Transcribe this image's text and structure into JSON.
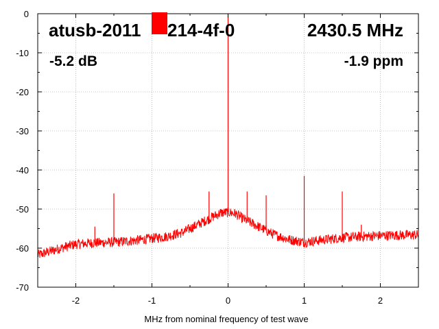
{
  "chart_data": {
    "type": "line",
    "title": "",
    "xlabel": "MHz from nominal frequency of test wave",
    "ylabel": "",
    "xlim": [
      -2.5,
      2.5
    ],
    "ylim": [
      -70,
      0
    ],
    "x_ticks": [
      -2,
      -1,
      0,
      1,
      2
    ],
    "y_ticks": [
      0,
      -10,
      -20,
      -30,
      -40,
      -50,
      -60,
      -70
    ],
    "grid": true,
    "series_color": "#ff0000",
    "series": [
      {
        "noise_floor": {
          "x": [
            -2.5,
            -2.2,
            -2.0,
            -1.8,
            -1.5,
            -1.2,
            -1.0,
            -0.8,
            -0.6,
            -0.4,
            -0.2,
            -0.1,
            0.0,
            0.1,
            0.2,
            0.4,
            0.6,
            0.8,
            1.0,
            1.2,
            1.5,
            1.8,
            2.0,
            2.2,
            2.5
          ],
          "y": [
            -61.8,
            -60,
            -59,
            -58.7,
            -58.5,
            -58,
            -57.5,
            -57,
            -56,
            -54,
            -52,
            -51,
            -50.8,
            -51.2,
            -52.5,
            -54.5,
            -56.5,
            -57.8,
            -58.5,
            -58,
            -57.3,
            -57,
            -56.8,
            -56.7,
            -56.6
          ]
        },
        "spurs": [
          {
            "x": 0.0,
            "y": 0
          },
          {
            "x": -1.75,
            "y": -54.5
          },
          {
            "x": -1.5,
            "y": -46
          },
          {
            "x": -0.5,
            "y": -54.5
          },
          {
            "x": -0.25,
            "y": -45.5
          },
          {
            "x": -0.1,
            "y": -50
          },
          {
            "x": 0.25,
            "y": -45.5
          },
          {
            "x": 0.5,
            "y": -46.5
          },
          {
            "x": 1.0,
            "y": -41.5
          },
          {
            "x": 1.5,
            "y": -45.5
          },
          {
            "x": 1.75,
            "y": -54
          }
        ]
      }
    ]
  },
  "labels": {
    "device": "atusb-2011",
    "device_suffix": "214-4f-0",
    "frequency": "2430.5 MHz",
    "level": "-5.2 dB",
    "offset": "-1.9 ppm"
  }
}
